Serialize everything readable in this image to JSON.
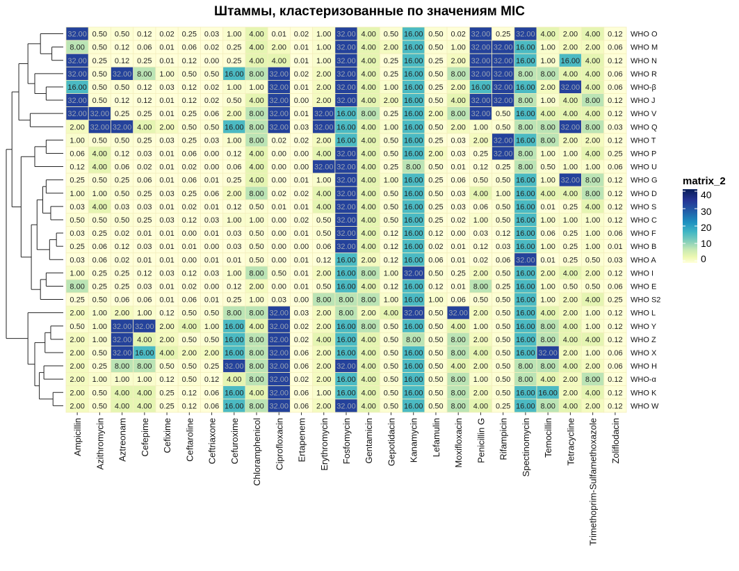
{
  "chart_data": {
    "type": "heatmap",
    "title": "Штаммы, кластеризованные по значениям MIC",
    "xlabel": "",
    "ylabel": "",
    "columns": [
      "Ampicillin",
      "Azithromycin",
      "Aztreonam",
      "Cefepime",
      "Cefixime",
      "Ceftaroline",
      "Ceftriaxone",
      "Cefuroxime",
      "Chloramphenicol",
      "Ciprofloxacin",
      "Ertapenem",
      "Erythromycin",
      "Fosfomycin",
      "Gentamicin",
      "Gepotidacin",
      "Kanamycin",
      "Lefamulin",
      "Moxifloxacin",
      "Penicillin G",
      "Rifampicin",
      "Spectinomycin",
      "Temocillin",
      "Tetracycline",
      "Trimethoprim-Sulfamethoxazole",
      "Zoliflodacin"
    ],
    "rows": [
      "WHO O",
      "WHO M",
      "WHO N",
      "WHO R",
      "WHO-β",
      "WHO J",
      "WHO V",
      "WHO Q",
      "WHO T",
      "WHO P",
      "WHO U",
      "WHO G",
      "WHO D",
      "WHO S",
      "WHO C",
      "WHO F",
      "WHO B",
      "WHO A",
      "WHO I",
      "WHO E",
      "WHO S2",
      "WHO L",
      "WHO Y",
      "WHO Z",
      "WHO X",
      "WHO H",
      "WHO-α",
      "WHO K",
      "WHO W"
    ],
    "values": [
      [
        "32.00",
        "0.50",
        "0.50",
        "0.12",
        "0.02",
        "0.25",
        "0.03",
        "1.00",
        "4.00",
        "0.01",
        "0.02",
        "1.00",
        "32.00",
        "4.00",
        "0.50",
        "16.00",
        "0.50",
        "0.02",
        "32.00",
        "0.25",
        "32.00",
        "4.00",
        "2.00",
        "4.00",
        "0.12"
      ],
      [
        "8.00",
        "0.50",
        "0.12",
        "0.06",
        "0.01",
        "0.06",
        "0.02",
        "0.25",
        "4.00",
        "2.00",
        "0.01",
        "1.00",
        "32.00",
        "4.00",
        "2.00",
        "16.00",
        "0.50",
        "1.00",
        "32.00",
        "32.00",
        "16.00",
        "1.00",
        "2.00",
        "2.00",
        "0.06"
      ],
      [
        "32.00",
        "0.25",
        "0.12",
        "0.25",
        "0.01",
        "0.12",
        "0.00",
        "0.25",
        "4.00",
        "4.00",
        "0.01",
        "1.00",
        "32.00",
        "4.00",
        "0.25",
        "16.00",
        "0.25",
        "2.00",
        "32.00",
        "32.00",
        "16.00",
        "1.00",
        "16.00",
        "4.00",
        "0.12"
      ],
      [
        "32.00",
        "0.50",
        "32.00",
        "8.00",
        "1.00",
        "0.50",
        "0.50",
        "16.00",
        "8.00",
        "32.00",
        "0.02",
        "2.00",
        "32.00",
        "4.00",
        "0.25",
        "16.00",
        "0.50",
        "8.00",
        "32.00",
        "32.00",
        "8.00",
        "8.00",
        "4.00",
        "4.00",
        "0.06"
      ],
      [
        "16.00",
        "0.50",
        "0.50",
        "0.12",
        "0.03",
        "0.12",
        "0.02",
        "1.00",
        "1.00",
        "32.00",
        "0.01",
        "2.00",
        "32.00",
        "4.00",
        "1.00",
        "16.00",
        "0.25",
        "2.00",
        "16.00",
        "32.00",
        "16.00",
        "2.00",
        "32.00",
        "4.00",
        "0.06"
      ],
      [
        "32.00",
        "0.50",
        "0.12",
        "0.12",
        "0.01",
        "0.12",
        "0.02",
        "0.50",
        "4.00",
        "32.00",
        "0.00",
        "2.00",
        "32.00",
        "4.00",
        "2.00",
        "16.00",
        "0.50",
        "4.00",
        "32.00",
        "32.00",
        "8.00",
        "1.00",
        "4.00",
        "8.00",
        "0.12"
      ],
      [
        "32.00",
        "32.00",
        "0.25",
        "0.25",
        "0.01",
        "0.25",
        "0.06",
        "2.00",
        "8.00",
        "32.00",
        "0.01",
        "32.00",
        "16.00",
        "8.00",
        "0.25",
        "16.00",
        "2.00",
        "8.00",
        "32.00",
        "0.50",
        "16.00",
        "4.00",
        "4.00",
        "4.00",
        "0.12"
      ],
      [
        "2.00",
        "32.00",
        "32.00",
        "4.00",
        "2.00",
        "0.50",
        "0.50",
        "16.00",
        "8.00",
        "32.00",
        "0.03",
        "32.00",
        "16.00",
        "4.00",
        "1.00",
        "16.00",
        "0.50",
        "2.00",
        "1.00",
        "0.50",
        "8.00",
        "8.00",
        "32.00",
        "8.00",
        "0.03"
      ],
      [
        "1.00",
        "0.50",
        "0.50",
        "0.25",
        "0.03",
        "0.25",
        "0.03",
        "1.00",
        "8.00",
        "0.02",
        "0.02",
        "2.00",
        "16.00",
        "4.00",
        "0.50",
        "16.00",
        "0.25",
        "0.03",
        "2.00",
        "32.00",
        "16.00",
        "8.00",
        "2.00",
        "2.00",
        "0.12"
      ],
      [
        "0.06",
        "4.00",
        "0.12",
        "0.03",
        "0.01",
        "0.06",
        "0.00",
        "0.12",
        "4.00",
        "0.00",
        "0.00",
        "4.00",
        "32.00",
        "4.00",
        "0.50",
        "16.00",
        "2.00",
        "0.03",
        "0.25",
        "32.00",
        "8.00",
        "1.00",
        "1.00",
        "4.00",
        "0.25"
      ],
      [
        "0.12",
        "4.00",
        "0.06",
        "0.02",
        "0.01",
        "0.02",
        "0.00",
        "0.06",
        "4.00",
        "0.00",
        "0.00",
        "32.00",
        "32.00",
        "4.00",
        "0.25",
        "8.00",
        "0.50",
        "0.01",
        "0.12",
        "0.25",
        "8.00",
        "0.50",
        "1.00",
        "1.00",
        "0.06"
      ],
      [
        "0.25",
        "0.50",
        "0.25",
        "0.06",
        "0.01",
        "0.06",
        "0.01",
        "0.25",
        "4.00",
        "0.00",
        "0.01",
        "1.00",
        "32.00",
        "4.00",
        "1.00",
        "16.00",
        "0.25",
        "0.06",
        "0.50",
        "0.50",
        "16.00",
        "1.00",
        "32.00",
        "8.00",
        "0.12"
      ],
      [
        "1.00",
        "1.00",
        "0.50",
        "0.25",
        "0.03",
        "0.25",
        "0.06",
        "2.00",
        "8.00",
        "0.02",
        "0.02",
        "4.00",
        "32.00",
        "4.00",
        "0.50",
        "16.00",
        "0.50",
        "0.03",
        "4.00",
        "1.00",
        "16.00",
        "4.00",
        "4.00",
        "8.00",
        "0.12"
      ],
      [
        "0.03",
        "4.00",
        "0.03",
        "0.03",
        "0.01",
        "0.02",
        "0.01",
        "0.12",
        "0.50",
        "0.01",
        "0.01",
        "4.00",
        "32.00",
        "4.00",
        "0.50",
        "16.00",
        "0.25",
        "0.03",
        "0.06",
        "0.50",
        "16.00",
        "0.01",
        "0.25",
        "4.00",
        "0.12"
      ],
      [
        "0.50",
        "0.50",
        "0.50",
        "0.25",
        "0.03",
        "0.12",
        "0.03",
        "1.00",
        "1.00",
        "0.00",
        "0.02",
        "0.50",
        "32.00",
        "4.00",
        "0.50",
        "16.00",
        "0.25",
        "0.02",
        "1.00",
        "0.50",
        "16.00",
        "1.00",
        "1.00",
        "1.00",
        "0.12"
      ],
      [
        "0.03",
        "0.25",
        "0.02",
        "0.01",
        "0.01",
        "0.00",
        "0.01",
        "0.03",
        "0.50",
        "0.00",
        "0.01",
        "0.50",
        "32.00",
        "4.00",
        "0.12",
        "16.00",
        "0.12",
        "0.00",
        "0.03",
        "0.12",
        "16.00",
        "0.06",
        "0.25",
        "1.00",
        "0.06"
      ],
      [
        "0.25",
        "0.06",
        "0.12",
        "0.03",
        "0.01",
        "0.01",
        "0.00",
        "0.03",
        "0.50",
        "0.00",
        "0.00",
        "0.06",
        "32.00",
        "4.00",
        "0.12",
        "16.00",
        "0.02",
        "0.01",
        "0.12",
        "0.03",
        "16.00",
        "1.00",
        "0.25",
        "1.00",
        "0.01"
      ],
      [
        "0.03",
        "0.06",
        "0.02",
        "0.01",
        "0.01",
        "0.00",
        "0.01",
        "0.01",
        "0.50",
        "0.00",
        "0.01",
        "0.12",
        "16.00",
        "2.00",
        "0.12",
        "16.00",
        "0.06",
        "0.01",
        "0.02",
        "0.06",
        "32.00",
        "0.01",
        "0.25",
        "0.50",
        "0.03"
      ],
      [
        "1.00",
        "0.25",
        "0.25",
        "0.12",
        "0.03",
        "0.12",
        "0.03",
        "1.00",
        "8.00",
        "0.50",
        "0.01",
        "2.00",
        "16.00",
        "8.00",
        "1.00",
        "32.00",
        "0.50",
        "0.25",
        "2.00",
        "0.50",
        "16.00",
        "2.00",
        "4.00",
        "2.00",
        "0.12"
      ],
      [
        "8.00",
        "0.25",
        "0.25",
        "0.03",
        "0.01",
        "0.02",
        "0.00",
        "0.12",
        "2.00",
        "0.00",
        "0.01",
        "0.50",
        "16.00",
        "4.00",
        "0.12",
        "16.00",
        "0.12",
        "0.01",
        "8.00",
        "0.25",
        "16.00",
        "1.00",
        "0.50",
        "0.50",
        "0.06"
      ],
      [
        "0.25",
        "0.50",
        "0.06",
        "0.06",
        "0.01",
        "0.06",
        "0.01",
        "0.25",
        "1.00",
        "0.03",
        "0.00",
        "8.00",
        "8.00",
        "8.00",
        "1.00",
        "16.00",
        "1.00",
        "0.06",
        "0.50",
        "0.50",
        "16.00",
        "1.00",
        "2.00",
        "4.00",
        "0.25"
      ],
      [
        "2.00",
        "1.00",
        "2.00",
        "1.00",
        "0.12",
        "0.50",
        "0.50",
        "8.00",
        "8.00",
        "32.00",
        "0.03",
        "2.00",
        "8.00",
        "2.00",
        "4.00",
        "32.00",
        "0.50",
        "32.00",
        "2.00",
        "0.50",
        "16.00",
        "4.00",
        "2.00",
        "1.00",
        "0.12"
      ],
      [
        "0.50",
        "1.00",
        "32.00",
        "32.00",
        "2.00",
        "4.00",
        "1.00",
        "16.00",
        "4.00",
        "32.00",
        "0.02",
        "2.00",
        "16.00",
        "8.00",
        "0.50",
        "16.00",
        "0.50",
        "4.00",
        "1.00",
        "0.50",
        "16.00",
        "8.00",
        "4.00",
        "1.00",
        "0.12"
      ],
      [
        "2.00",
        "1.00",
        "32.00",
        "4.00",
        "2.00",
        "0.50",
        "0.50",
        "16.00",
        "8.00",
        "32.00",
        "0.02",
        "4.00",
        "16.00",
        "4.00",
        "0.50",
        "8.00",
        "0.50",
        "8.00",
        "2.00",
        "0.50",
        "16.00",
        "8.00",
        "4.00",
        "4.00",
        "0.12"
      ],
      [
        "2.00",
        "0.50",
        "32.00",
        "16.00",
        "4.00",
        "2.00",
        "2.00",
        "16.00",
        "8.00",
        "32.00",
        "0.06",
        "2.00",
        "16.00",
        "4.00",
        "0.50",
        "16.00",
        "0.50",
        "8.00",
        "4.00",
        "0.50",
        "16.00",
        "32.00",
        "2.00",
        "1.00",
        "0.06"
      ],
      [
        "2.00",
        "0.25",
        "8.00",
        "8.00",
        "0.50",
        "0.50",
        "0.25",
        "32.00",
        "8.00",
        "32.00",
        "0.06",
        "2.00",
        "32.00",
        "4.00",
        "0.50",
        "16.00",
        "0.50",
        "4.00",
        "2.00",
        "0.50",
        "8.00",
        "8.00",
        "4.00",
        "2.00",
        "0.06"
      ],
      [
        "2.00",
        "1.00",
        "1.00",
        "1.00",
        "0.12",
        "0.50",
        "0.12",
        "4.00",
        "8.00",
        "32.00",
        "0.02",
        "2.00",
        "16.00",
        "4.00",
        "0.50",
        "16.00",
        "0.50",
        "8.00",
        "1.00",
        "0.50",
        "8.00",
        "4.00",
        "2.00",
        "8.00",
        "0.12"
      ],
      [
        "2.00",
        "0.50",
        "4.00",
        "4.00",
        "0.25",
        "0.12",
        "0.06",
        "16.00",
        "4.00",
        "32.00",
        "0.06",
        "1.00",
        "16.00",
        "4.00",
        "0.50",
        "16.00",
        "0.50",
        "8.00",
        "2.00",
        "0.50",
        "16.00",
        "16.00",
        "2.00",
        "4.00",
        "0.12"
      ],
      [
        "2.00",
        "0.50",
        "4.00",
        "4.00",
        "0.25",
        "0.12",
        "0.06",
        "16.00",
        "8.00",
        "32.00",
        "0.06",
        "2.00",
        "32.00",
        "4.00",
        "0.50",
        "16.00",
        "0.50",
        "8.00",
        "4.00",
        "0.25",
        "16.00",
        "8.00",
        "4.00",
        "2.00",
        "0.12"
      ]
    ],
    "legend": {
      "title": "matrix_2",
      "ticks": [
        "0",
        "10",
        "20",
        "30",
        "40"
      ],
      "min": 0,
      "max": 40,
      "placement": "right"
    },
    "colors": {
      "low": "#ffffd9",
      "mid": "#41b6c4",
      "high": "#081d58",
      "grid": "#f4eebd"
    },
    "dendrogram": "left"
  }
}
